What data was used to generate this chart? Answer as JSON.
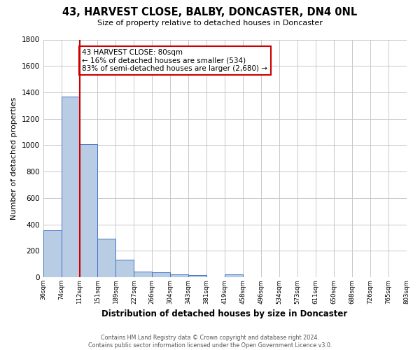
{
  "title": "43, HARVEST CLOSE, BALBY, DONCASTER, DN4 0NL",
  "subtitle": "Size of property relative to detached houses in Doncaster",
  "xlabel": "Distribution of detached houses by size in Doncaster",
  "ylabel": "Number of detached properties",
  "bin_labels": [
    "36sqm",
    "74sqm",
    "112sqm",
    "151sqm",
    "189sqm",
    "227sqm",
    "266sqm",
    "304sqm",
    "343sqm",
    "381sqm",
    "419sqm",
    "458sqm",
    "496sqm",
    "534sqm",
    "573sqm",
    "611sqm",
    "650sqm",
    "688sqm",
    "726sqm",
    "765sqm",
    "803sqm"
  ],
  "bar_heights": [
    355,
    1370,
    1010,
    290,
    130,
    40,
    35,
    20,
    15,
    0,
    20,
    0,
    0,
    0,
    0,
    0,
    0,
    0,
    0,
    0
  ],
  "bar_color": "#b8cce4",
  "bar_edge_color": "#4472c4",
  "ylim": [
    0,
    1800
  ],
  "yticks": [
    0,
    200,
    400,
    600,
    800,
    1000,
    1200,
    1400,
    1600,
    1800
  ],
  "property_line_x": 2,
  "property_line_color": "#cc0000",
  "annotation_title": "43 HARVEST CLOSE: 80sqm",
  "annotation_line1": "← 16% of detached houses are smaller (534)",
  "annotation_line2": "83% of semi-detached houses are larger (2,680) →",
  "annotation_box_color": "#ffffff",
  "annotation_box_edge_color": "#cc0000",
  "footer_line1": "Contains HM Land Registry data © Crown copyright and database right 2024.",
  "footer_line2": "Contains public sector information licensed under the Open Government Licence v3.0.",
  "background_color": "#ffffff",
  "grid_color": "#c8c8c8"
}
